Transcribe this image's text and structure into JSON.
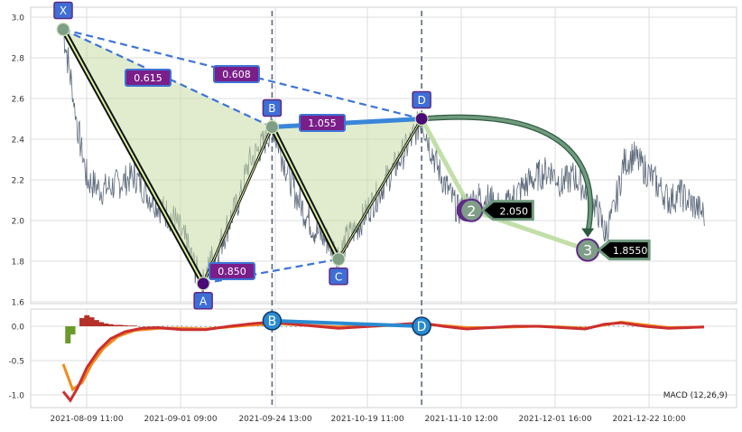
{
  "chart_data": [
    {
      "type": "line",
      "panel": "price",
      "x_ticks": [
        "2021-08-09 11:00",
        "2021-09-01 09:00",
        "2021-09-24 13:00",
        "2021-10-19 11:00",
        "2021-11-10 12:00",
        "2021-12-01 16:00",
        "2021-12-22 10:00"
      ],
      "ylim": [
        1.6,
        3.0
      ],
      "y_ticks": [
        "1.6",
        "1.8",
        "2.0",
        "2.2",
        "2.4",
        "2.6",
        "2.8",
        "3.0"
      ],
      "grid": true,
      "price_path": [
        [
          0,
          2.93
        ],
        [
          0.3,
          2.7
        ],
        [
          0.6,
          2.45
        ],
        [
          1.0,
          2.2
        ],
        [
          1.6,
          2.15
        ],
        [
          2.3,
          2.18
        ],
        [
          3.0,
          2.22
        ],
        [
          3.6,
          2.12
        ],
        [
          4.2,
          2.05
        ],
        [
          4.7,
          2.0
        ],
        [
          5.2,
          1.88
        ],
        [
          5.6,
          1.75
        ],
        [
          5.9,
          1.69
        ],
        [
          6.2,
          1.8
        ],
        [
          6.6,
          1.88
        ],
        [
          7.0,
          2.0
        ],
        [
          7.4,
          2.1
        ],
        [
          7.8,
          2.28
        ],
        [
          8.3,
          2.36
        ],
        [
          8.8,
          2.46
        ],
        [
          9.2,
          2.32
        ],
        [
          9.7,
          2.15
        ],
        [
          10.2,
          2.03
        ],
        [
          10.6,
          1.95
        ],
        [
          11.1,
          1.9
        ],
        [
          11.6,
          1.83
        ],
        [
          12.0,
          1.92
        ],
        [
          12.4,
          1.97
        ],
        [
          12.8,
          2.05
        ],
        [
          13.2,
          2.12
        ],
        [
          13.6,
          2.2
        ],
        [
          14.0,
          2.27
        ],
        [
          14.4,
          2.35
        ],
        [
          14.8,
          2.43
        ],
        [
          15.1,
          2.5
        ],
        [
          15.4,
          2.38
        ],
        [
          15.8,
          2.25
        ],
        [
          16.2,
          2.15
        ],
        [
          16.6,
          2.05
        ],
        [
          17.0,
          2.08
        ],
        [
          17.5,
          2.12
        ],
        [
          18.0,
          2.1
        ],
        [
          18.5,
          2.05
        ],
        [
          19.0,
          2.12
        ],
        [
          19.5,
          2.18
        ],
        [
          20.0,
          2.22
        ],
        [
          20.5,
          2.25
        ],
        [
          21.0,
          2.18
        ],
        [
          21.5,
          2.22
        ],
        [
          22.0,
          2.15
        ],
        [
          22.5,
          2.05
        ],
        [
          22.8,
          1.94
        ],
        [
          23.2,
          2.05
        ],
        [
          23.6,
          2.28
        ],
        [
          24.0,
          2.32
        ],
        [
          24.5,
          2.25
        ],
        [
          25.0,
          2.18
        ],
        [
          25.5,
          2.1
        ],
        [
          26.0,
          2.13
        ],
        [
          26.5,
          2.08
        ],
        [
          27.0,
          2.03
        ]
      ],
      "pattern": {
        "points": [
          {
            "label": "X",
            "x": 0,
            "y": 2.94
          },
          {
            "label": "A",
            "x": 5.9,
            "y": 1.69
          },
          {
            "label": "B",
            "x": 8.8,
            "y": 2.46
          },
          {
            "label": "C",
            "x": 11.6,
            "y": 1.81
          },
          {
            "label": "D",
            "x": 15.1,
            "y": 2.5
          }
        ],
        "ratios": [
          {
            "from": "X",
            "to": "B",
            "value": "0.615"
          },
          {
            "from": "X",
            "to": "D",
            "value": "0.608"
          },
          {
            "from": "A",
            "to": "C",
            "value": "0.850"
          },
          {
            "from": "B",
            "to": "D",
            "value": "1.055"
          }
        ],
        "targets": [
          {
            "label": "2",
            "x": 17.2,
            "y": 2.05,
            "value": "2.050"
          },
          {
            "label": "3",
            "x": 22.1,
            "y": 1.855,
            "value": "1.8550"
          }
        ],
        "vertical_markers": [
          "B",
          "D"
        ]
      }
    },
    {
      "type": "line",
      "panel": "macd",
      "label": "MACD (12,26,9)",
      "ylim": [
        -1.15,
        0.25
      ],
      "y_ticks": [
        "0.0",
        "-0.5",
        "-1.0"
      ],
      "macd_line": [
        [
          0,
          -0.95
        ],
        [
          0.3,
          -1.08
        ],
        [
          0.6,
          -0.9
        ],
        [
          1.0,
          -0.6
        ],
        [
          1.5,
          -0.35
        ],
        [
          2.0,
          -0.18
        ],
        [
          2.6,
          -0.08
        ],
        [
          3.3,
          -0.03
        ],
        [
          4.0,
          -0.02
        ],
        [
          5.0,
          -0.05
        ],
        [
          6.0,
          -0.05
        ],
        [
          7.0,
          0.0
        ],
        [
          8.0,
          0.04
        ],
        [
          8.8,
          0.06
        ],
        [
          10.0,
          0.02
        ],
        [
          11.6,
          -0.03
        ],
        [
          13.0,
          0.0
        ],
        [
          15.1,
          0.05
        ],
        [
          16.0,
          0.0
        ],
        [
          17.0,
          -0.04
        ],
        [
          18.0,
          -0.02
        ],
        [
          19.0,
          0.0
        ],
        [
          20.0,
          0.0
        ],
        [
          21.0,
          -0.02
        ],
        [
          22.0,
          -0.04
        ],
        [
          22.8,
          0.03
        ],
        [
          23.5,
          0.05
        ],
        [
          24.5,
          0.0
        ],
        [
          25.5,
          -0.03
        ],
        [
          27.0,
          -0.01
        ]
      ],
      "signal_line": [
        [
          0,
          -0.55
        ],
        [
          0.4,
          -0.92
        ],
        [
          0.8,
          -0.82
        ],
        [
          1.2,
          -0.55
        ],
        [
          1.7,
          -0.32
        ],
        [
          2.3,
          -0.15
        ],
        [
          3.0,
          -0.06
        ],
        [
          4.0,
          -0.03
        ],
        [
          5.0,
          -0.03
        ],
        [
          6.0,
          -0.04
        ],
        [
          7.0,
          -0.01
        ],
        [
          8.0,
          0.02
        ],
        [
          9.0,
          0.04
        ],
        [
          10.0,
          0.02
        ],
        [
          11.6,
          -0.01
        ],
        [
          13.0,
          0.0
        ],
        [
          15.1,
          0.03
        ],
        [
          16.0,
          0.01
        ],
        [
          17.0,
          -0.02
        ],
        [
          18.0,
          -0.02
        ],
        [
          19.0,
          -0.01
        ],
        [
          20.0,
          0.0
        ],
        [
          21.0,
          -0.01
        ],
        [
          22.0,
          -0.03
        ],
        [
          22.8,
          0.02
        ],
        [
          23.5,
          0.06
        ],
        [
          24.5,
          0.02
        ],
        [
          25.5,
          -0.02
        ],
        [
          27.0,
          -0.01
        ]
      ],
      "histogram": [
        [
          0.2,
          -0.25
        ],
        [
          0.4,
          -0.12
        ],
        [
          0.8,
          0.12
        ],
        [
          1.0,
          0.16
        ],
        [
          1.2,
          0.13
        ],
        [
          1.4,
          0.09
        ],
        [
          1.6,
          0.06
        ],
        [
          1.8,
          0.04
        ],
        [
          2.0,
          0.03
        ],
        [
          2.2,
          0.02
        ],
        [
          2.4,
          0.02
        ],
        [
          2.6,
          0.015
        ],
        [
          2.8,
          0.01
        ],
        [
          3.0,
          0.01
        ]
      ],
      "markers": [
        {
          "label": "B",
          "x": 8.8,
          "y": 0.08
        },
        {
          "label": "D",
          "x": 15.1,
          "y": 0.0
        }
      ]
    }
  ]
}
